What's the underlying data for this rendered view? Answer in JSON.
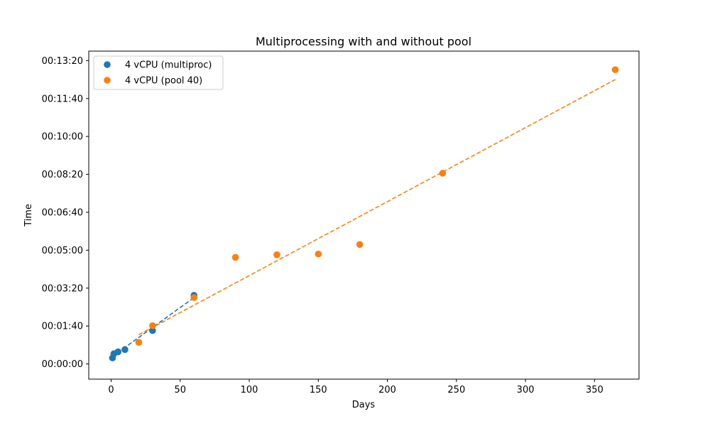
{
  "chart_data": {
    "type": "scatter",
    "title": "Multiprocessing with and without pool",
    "xlabel": "Days",
    "ylabel": "Time",
    "xlim": [
      -16.2,
      382.2
    ],
    "ylim": [
      -40,
      825
    ],
    "x_ticks": [
      0,
      50,
      100,
      150,
      200,
      250,
      300,
      350
    ],
    "y_ticks": [
      {
        "value": 0,
        "label": "00:00:00"
      },
      {
        "value": 100,
        "label": "00:01:40"
      },
      {
        "value": 200,
        "label": "00:03:20"
      },
      {
        "value": 300,
        "label": "00:05:00"
      },
      {
        "value": 400,
        "label": "00:06:40"
      },
      {
        "value": 500,
        "label": "00:08:20"
      },
      {
        "value": 600,
        "label": "00:10:00"
      },
      {
        "value": 700,
        "label": "00:11:40"
      },
      {
        "value": 800,
        "label": "00:13:20"
      }
    ],
    "grid": false,
    "legend_position": "top-left",
    "series": [
      {
        "name": "4 vCPU (multiproc)",
        "color": "#1f77b4",
        "points": [
          [
            1,
            16
          ],
          [
            2,
            27
          ],
          [
            5,
            32
          ],
          [
            10,
            38
          ],
          [
            30,
            88
          ],
          [
            60,
            181
          ]
        ],
        "trend": [
          [
            1,
            20
          ],
          [
            60,
            175
          ]
        ]
      },
      {
        "name": "4 vCPU (pool 40)",
        "color": "#ff7f0e",
        "points": [
          [
            20,
            57
          ],
          [
            30,
            101
          ],
          [
            60,
            175
          ],
          [
            90,
            281
          ],
          [
            120,
            288
          ],
          [
            150,
            290
          ],
          [
            180,
            315
          ],
          [
            240,
            503
          ],
          [
            365,
            776
          ]
        ],
        "trend": [
          [
            20,
            77
          ],
          [
            365,
            750
          ]
        ]
      }
    ]
  }
}
